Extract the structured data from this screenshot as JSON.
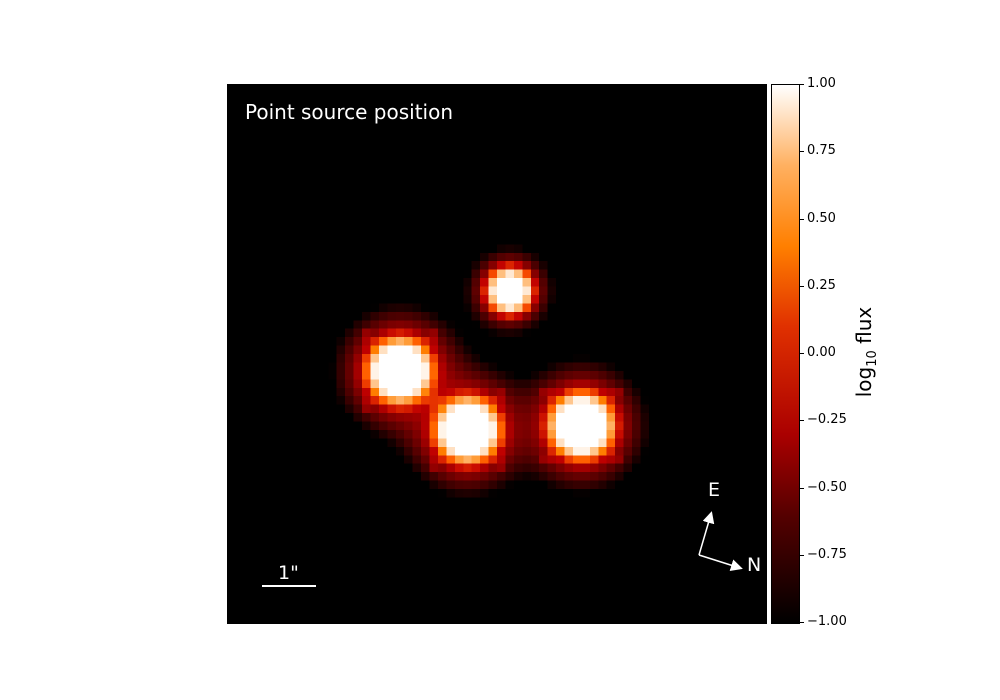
{
  "chart_data": {
    "type": "heatmap",
    "title": "Point source position",
    "colormap": "gist_heat",
    "colorbar": {
      "label_main": "log",
      "label_sub": "10",
      "label_suffix": " flux",
      "range": [
        -1.0,
        1.0
      ],
      "ticks": [
        1.0,
        0.75,
        0.5,
        0.25,
        0.0,
        -0.25,
        -0.5,
        -0.75,
        -1.0
      ],
      "tick_labels": [
        "1.00",
        "0.75",
        "0.50",
        "0.25",
        "0.00",
        "−0.25",
        "−0.50",
        "−0.75",
        "−1.00"
      ]
    },
    "grid_size": 64,
    "sources": [
      {
        "x": 33.5,
        "y": 24.5,
        "peak": 1.0,
        "width": 1.1,
        "spikes": false
      },
      {
        "x": 20.5,
        "y": 34.0,
        "peak": 1.2,
        "width": 1.5,
        "spikes": true
      },
      {
        "x": 28.5,
        "y": 41.0,
        "peak": 1.2,
        "width": 1.5,
        "spikes": true
      },
      {
        "x": 42.0,
        "y": 40.5,
        "peak": 1.2,
        "width": 1.5,
        "spikes": true
      }
    ],
    "scale_bar": {
      "label": "1\""
    },
    "compass": {
      "east_label": "E",
      "north_label": "N"
    },
    "background_color": "#000000"
  }
}
